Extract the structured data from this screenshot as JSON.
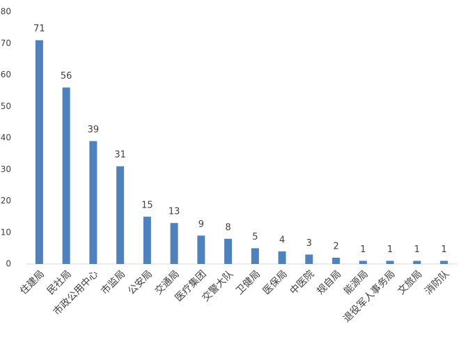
{
  "chart_data": {
    "type": "bar",
    "categories": [
      "住建局",
      "民社局",
      "市政公用中心",
      "市监局",
      "公安局",
      "交通局",
      "医疗集团",
      "交警大队",
      "卫健局",
      "医保局",
      "中医院",
      "规自局",
      "能源局",
      "退役军人事务局",
      "文旅局",
      "消防队"
    ],
    "values": [
      71,
      56,
      39,
      31,
      15,
      13,
      9,
      8,
      5,
      4,
      3,
      2,
      1,
      1,
      1,
      1
    ],
    "color": "#4f81bd",
    "ylim": [
      0,
      80
    ],
    "yticks": [
      0,
      10,
      20,
      30,
      40,
      50,
      60,
      70,
      80
    ],
    "grid": false
  }
}
